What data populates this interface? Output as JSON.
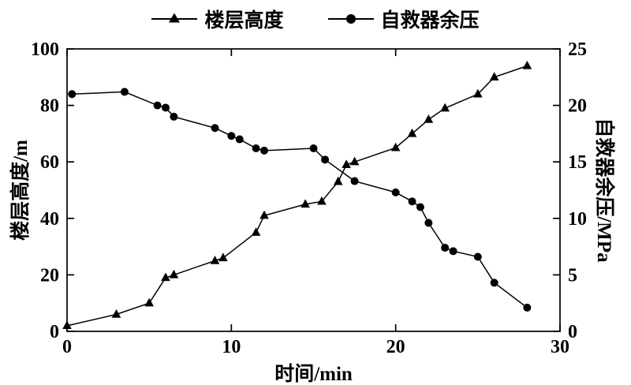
{
  "chart_data": {
    "type": "line",
    "title": "",
    "xlabel": "时间/min",
    "ylabel_left": "楼层高度/m",
    "ylabel_right": "自救器余压/MPa",
    "xlim": [
      0,
      30
    ],
    "ylim_left": [
      0,
      100
    ],
    "ylim_right": [
      0,
      25
    ],
    "xticks": [
      0,
      10,
      20,
      30
    ],
    "yticks_left": [
      0,
      20,
      40,
      60,
      80,
      100
    ],
    "yticks_right": [
      0,
      5,
      10,
      15,
      20,
      25
    ],
    "grid": false,
    "legend_position": "top-center",
    "axis_color": "#000000",
    "series": [
      {
        "name": "楼层高度",
        "axis": "left",
        "marker": "triangle",
        "color": "#000000",
        "points": [
          [
            0,
            2
          ],
          [
            3,
            6
          ],
          [
            5,
            10
          ],
          [
            6,
            19
          ],
          [
            6.5,
            20
          ],
          [
            9,
            25
          ],
          [
            9.5,
            26
          ],
          [
            11.5,
            35
          ],
          [
            12,
            41
          ],
          [
            14.5,
            45
          ],
          [
            15.5,
            46
          ],
          [
            16.5,
            53
          ],
          [
            17,
            59
          ],
          [
            17.5,
            60
          ],
          [
            20,
            65
          ],
          [
            21,
            70
          ],
          [
            22,
            75
          ],
          [
            23,
            79
          ],
          [
            25,
            84
          ],
          [
            26,
            90
          ],
          [
            28,
            94
          ]
        ]
      },
      {
        "name": "自救器余压",
        "axis": "right",
        "marker": "circle",
        "color": "#000000",
        "points": [
          [
            0.3,
            21
          ],
          [
            3.5,
            21.2
          ],
          [
            5.5,
            20
          ],
          [
            6,
            19.8
          ],
          [
            6.5,
            19
          ],
          [
            9,
            18
          ],
          [
            10,
            17.3
          ],
          [
            10.5,
            17
          ],
          [
            11.5,
            16.2
          ],
          [
            12,
            16
          ],
          [
            15,
            16.2
          ],
          [
            15.7,
            15.2
          ],
          [
            17.5,
            13.3
          ],
          [
            20,
            12.3
          ],
          [
            21,
            11.5
          ],
          [
            21.5,
            11
          ],
          [
            22,
            9.6
          ],
          [
            23,
            7.4
          ],
          [
            23.5,
            7.1
          ],
          [
            25,
            6.6
          ],
          [
            26,
            4.3
          ],
          [
            28,
            2.1
          ]
        ]
      }
    ]
  }
}
